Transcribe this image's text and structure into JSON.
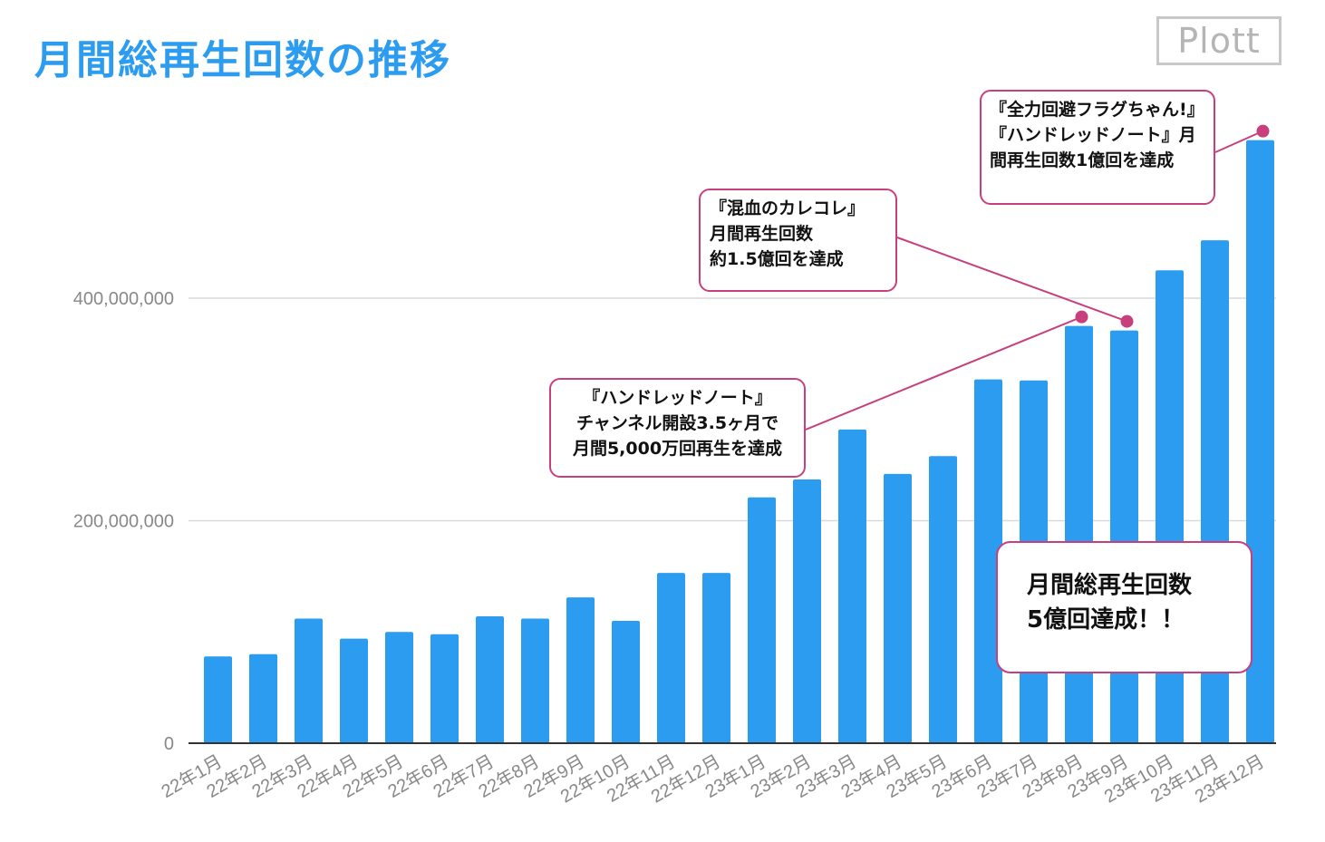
{
  "title": "月間総再生回数の推移",
  "logo_text": "Plott",
  "colors": {
    "bar": "#2b9cf0",
    "accent": "#c83f7d",
    "grid": "#d9d9d9",
    "tick": "#888888"
  },
  "chart_data": {
    "type": "bar",
    "categories": [
      "22年1月",
      "22年2月",
      "22年3月",
      "22年4月",
      "22年5月",
      "22年6月",
      "22年7月",
      "22年8月",
      "22年9月",
      "22年10月",
      "22年11月",
      "22年12月",
      "23年1月",
      "23年2月",
      "23年3月",
      "23年4月",
      "23年5月",
      "23年6月",
      "23年7月",
      "23年8月",
      "23年9月",
      "23年10月",
      "23年11月",
      "23年12月"
    ],
    "values": [
      78000000,
      80000000,
      112000000,
      94000000,
      100000000,
      98000000,
      114000000,
      112000000,
      131000000,
      110000000,
      153000000,
      153000000,
      221000000,
      237000000,
      282000000,
      242000000,
      258000000,
      327000000,
      326000000,
      375000000,
      371000000,
      425000000,
      452000000,
      542000000
    ],
    "ylim": [
      0,
      580000000
    ],
    "yticks": [
      0,
      200000000,
      400000000
    ],
    "ytick_labels": [
      "0",
      "200,000,000",
      "400,000,000"
    ],
    "grid": true,
    "xlabel": "",
    "ylabel": ""
  },
  "annotations": [
    {
      "text": "『ハンドレッドノート』\nチャンネル開設3.5ヶ月で\n月間5,000万回再生を達成",
      "target_index": 19
    },
    {
      "text": "『混血のカレコレ』\n月間再生回数\n約1.5億回を達成",
      "target_index": 20
    },
    {
      "text": "『全力回避フラグちゃん!』『ハンドレッドノート』月間再生回数1億回を達成",
      "target_index": 23
    },
    {
      "text": "月間総再生回数\n5億回達成！！"
    }
  ]
}
